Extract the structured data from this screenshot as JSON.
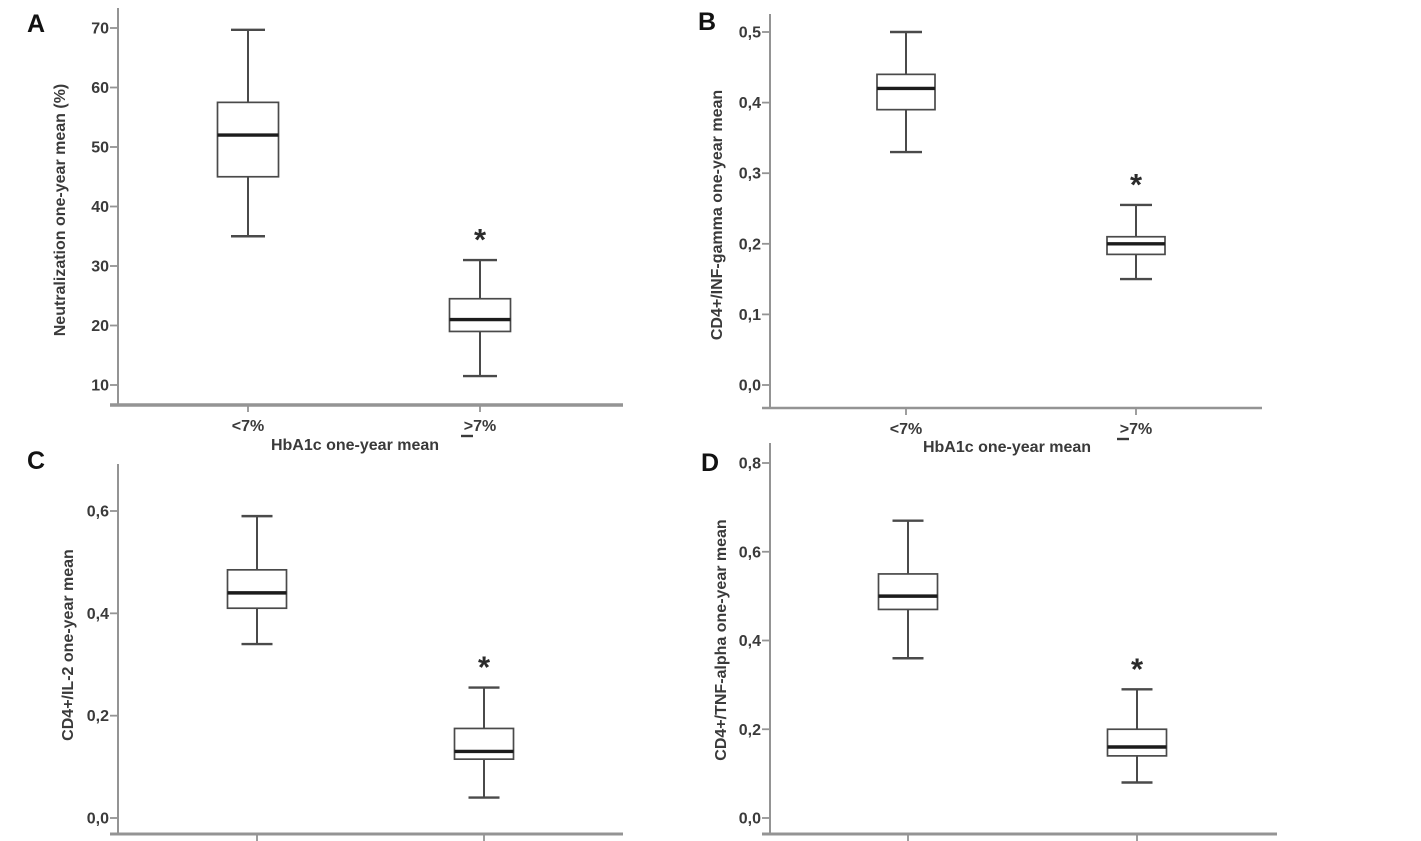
{
  "figure": {
    "background": "#ffffff",
    "ink_color": "#3a3a3a",
    "axis_color": "#949494",
    "box_stroke_color": "#4a4a4a",
    "median_color": "#1c1c1c",
    "box_fill_color": "#ffffff",
    "significance_marker": "*"
  },
  "chart_data": [
    {
      "type": "boxplot",
      "panel_label": "A",
      "title": "",
      "ylabel": "Neutralization one-year mean (%)",
      "xlabel": "HbA1c one-year mean",
      "xlabel_visible": true,
      "x_tick_labels_visible": true,
      "ylim": [
        6,
        73
      ],
      "yticks": [
        {
          "v": 10,
          "label": "10"
        },
        {
          "v": 20,
          "label": "20"
        },
        {
          "v": 30,
          "label": "30"
        },
        {
          "v": 40,
          "label": "40"
        },
        {
          "v": 50,
          "label": "50"
        },
        {
          "v": 60,
          "label": "60"
        },
        {
          "v": 70,
          "label": "70"
        }
      ],
      "categories": [
        "<7%",
        "≥7%"
      ],
      "boxes": [
        {
          "category": "<7%",
          "whisker_low": 35,
          "q1": 45,
          "median": 52,
          "q3": 57.5,
          "whisker_high": 69.7,
          "significance": ""
        },
        {
          "category": "≥7%",
          "whisker_low": 11.5,
          "q1": 19,
          "median": 21,
          "q3": 24.5,
          "whisker_high": 31,
          "significance": "*"
        }
      ]
    },
    {
      "type": "boxplot",
      "panel_label": "B",
      "title": "",
      "ylabel": "CD4+/INF-gamma one-year mean",
      "xlabel": "HbA1c one-year mean",
      "xlabel_visible": true,
      "x_tick_labels_visible": true,
      "ylim": [
        0,
        0.52
      ],
      "yticks": [
        {
          "v": 0.0,
          "label": "0,0"
        },
        {
          "v": 0.1,
          "label": "0,1"
        },
        {
          "v": 0.2,
          "label": "0,2"
        },
        {
          "v": 0.3,
          "label": "0,3"
        },
        {
          "v": 0.4,
          "label": "0,4"
        },
        {
          "v": 0.5,
          "label": "0,5"
        }
      ],
      "categories": [
        "<7%",
        "≥7%"
      ],
      "boxes": [
        {
          "category": "<7%",
          "whisker_low": 0.33,
          "q1": 0.39,
          "median": 0.42,
          "q3": 0.44,
          "whisker_high": 0.5,
          "significance": ""
        },
        {
          "category": "≥7%",
          "whisker_low": 0.15,
          "q1": 0.185,
          "median": 0.2,
          "q3": 0.21,
          "whisker_high": 0.255,
          "significance": "*"
        }
      ]
    },
    {
      "type": "boxplot",
      "panel_label": "C",
      "title": "",
      "ylabel": "CD4+/IL-2 one-year mean",
      "xlabel": "",
      "xlabel_visible": false,
      "x_tick_labels_visible": false,
      "ylim": [
        0,
        0.68
      ],
      "yticks": [
        {
          "v": 0.0,
          "label": "0,0"
        },
        {
          "v": 0.2,
          "label": "0,2"
        },
        {
          "v": 0.4,
          "label": "0,4"
        },
        {
          "v": 0.6,
          "label": "0,6"
        }
      ],
      "categories": [
        "",
        ""
      ],
      "boxes": [
        {
          "category": "",
          "whisker_low": 0.34,
          "q1": 0.41,
          "median": 0.44,
          "q3": 0.485,
          "whisker_high": 0.59,
          "significance": ""
        },
        {
          "category": "",
          "whisker_low": 0.04,
          "q1": 0.115,
          "median": 0.13,
          "q3": 0.175,
          "whisker_high": 0.255,
          "significance": "*"
        }
      ]
    },
    {
      "type": "boxplot",
      "panel_label": "D",
      "title": "",
      "ylabel": "CD4+/TNF-alpha one-year mean",
      "xlabel": "",
      "xlabel_visible": false,
      "x_tick_labels_visible": false,
      "ylim": [
        0,
        0.83
      ],
      "yticks": [
        {
          "v": 0.0,
          "label": "0,0"
        },
        {
          "v": 0.2,
          "label": "0,2"
        },
        {
          "v": 0.4,
          "label": "0,4"
        },
        {
          "v": 0.6,
          "label": "0,6"
        },
        {
          "v": 0.8,
          "label": "0,8"
        }
      ],
      "categories": [
        "",
        ""
      ],
      "boxes": [
        {
          "category": "",
          "whisker_low": 0.36,
          "q1": 0.47,
          "median": 0.5,
          "q3": 0.55,
          "whisker_high": 0.67,
          "significance": ""
        },
        {
          "category": "",
          "whisker_low": 0.08,
          "q1": 0.14,
          "median": 0.16,
          "q3": 0.2,
          "whisker_high": 0.29,
          "significance": "*"
        }
      ]
    }
  ]
}
